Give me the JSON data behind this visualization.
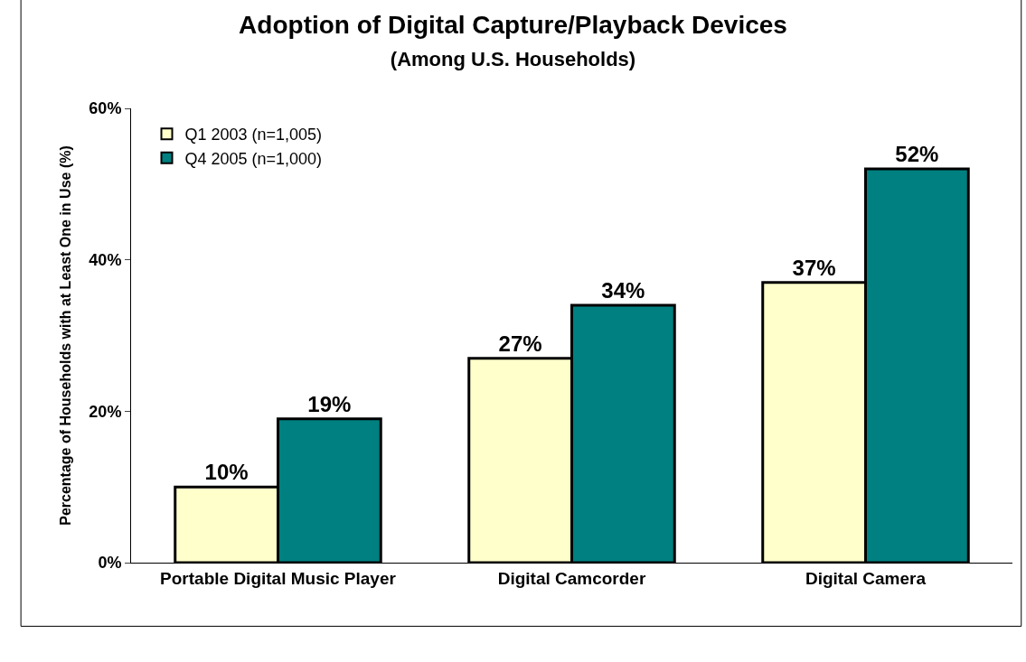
{
  "chart_data": {
    "type": "bar",
    "title": "Adoption of Digital Capture/Playback Devices",
    "subtitle": "(Among U.S. Households)",
    "ylabel": "Percentage of Households with at Least One in Use (%)",
    "categories": [
      "Portable Digital Music Player",
      "Digital Camcorder",
      "Digital Camera"
    ],
    "series": [
      {
        "name": "Q1 2003 (n=1,005)",
        "color": "#ffffcc",
        "values": [
          10,
          27,
          37
        ],
        "value_labels": [
          "10%",
          "27%",
          "37%"
        ]
      },
      {
        "name": "Q4 2005 (n=1,000)",
        "color": "#008080",
        "values": [
          19,
          34,
          52
        ],
        "value_labels": [
          "19%",
          "34%",
          "52%"
        ]
      }
    ],
    "ylim": [
      0,
      60
    ],
    "yticks": [
      {
        "value": 0,
        "label": "0%"
      },
      {
        "value": 20,
        "label": "20%"
      },
      {
        "value": 40,
        "label": "40%"
      },
      {
        "value": 60,
        "label": "60%"
      }
    ],
    "grid": false,
    "legend": "top left"
  }
}
